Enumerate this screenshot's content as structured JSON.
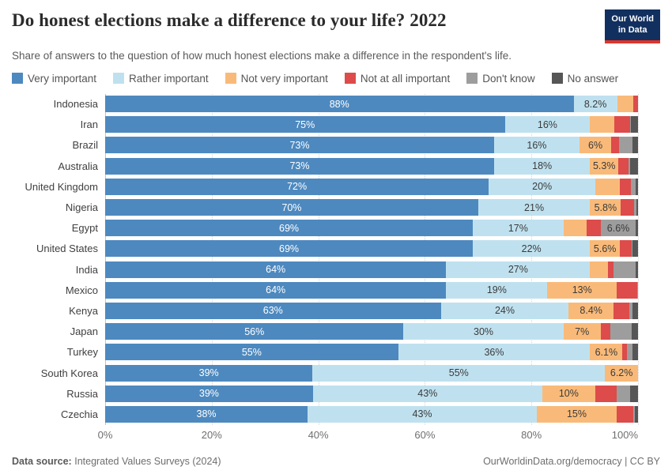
{
  "header": {
    "title": "Do honest elections make a difference to your life? 2022",
    "subtitle": "Share of answers to the question of how much honest elections make a difference in the respondent's life.",
    "logo_line1": "Our World",
    "logo_line2": "in Data",
    "logo_colors": {
      "background": "#12305f",
      "stripe": "#e0352b"
    }
  },
  "chart_data": {
    "type": "bar",
    "orientation": "horizontal-stacked",
    "unit": "%",
    "xlim": [
      0,
      100
    ],
    "grid": true,
    "ticks": [
      "0%",
      "20%",
      "40%",
      "60%",
      "80%",
      "100%"
    ],
    "series_names": [
      "Very important",
      "Rather important",
      "Not very important",
      "Not at all important",
      "Don't know",
      "No answer"
    ],
    "series_colors": [
      "#4d89bf",
      "#bfe1ef",
      "#f9ba79",
      "#dd4b4b",
      "#9d9d9d",
      "#565656"
    ],
    "categories": [
      "Indonesia",
      "Iran",
      "Brazil",
      "Australia",
      "United Kingdom",
      "Nigeria",
      "Egypt",
      "United States",
      "India",
      "Mexico",
      "Kenya",
      "Japan",
      "Turkey",
      "South Korea",
      "Russia",
      "Czechia"
    ],
    "rows": [
      {
        "country": "Indonesia",
        "values": [
          88,
          8.2,
          3.0,
          0.9,
          0,
          0
        ],
        "labels": [
          "88%",
          "8.2%",
          "",
          "",
          "",
          ""
        ]
      },
      {
        "country": "Iran",
        "values": [
          75,
          16,
          4.6,
          2.9,
          0.2,
          1.3
        ],
        "labels": [
          "75%",
          "16%",
          "",
          "",
          "",
          ""
        ]
      },
      {
        "country": "Brazil",
        "values": [
          73,
          16,
          6.0,
          1.5,
          2.4,
          1.1
        ],
        "labels": [
          "73%",
          "16%",
          "6%",
          "",
          "",
          ""
        ]
      },
      {
        "country": "Australia",
        "values": [
          73,
          18,
          5.3,
          1.9,
          0.3,
          1.5
        ],
        "labels": [
          "73%",
          "18%",
          "5.3%",
          "",
          "",
          ""
        ]
      },
      {
        "country": "United Kingdom",
        "values": [
          72,
          20,
          4.6,
          2.0,
          0.9,
          0.5
        ],
        "labels": [
          "72%",
          "20%",
          "",
          "",
          "",
          ""
        ]
      },
      {
        "country": "Nigeria",
        "values": [
          70,
          21,
          5.8,
          2.4,
          0.5,
          0.3
        ],
        "labels": [
          "70%",
          "21%",
          "5.8%",
          "",
          "",
          ""
        ]
      },
      {
        "country": "Egypt",
        "values": [
          69,
          17,
          4.4,
          2.6,
          6.6,
          0.4
        ],
        "labels": [
          "69%",
          "17%",
          "",
          "",
          "6.6%",
          ""
        ]
      },
      {
        "country": "United States",
        "values": [
          69,
          22,
          5.6,
          2.2,
          0.2,
          1.0
        ],
        "labels": [
          "69%",
          "22%",
          "5.6%",
          "",
          "",
          ""
        ]
      },
      {
        "country": "India",
        "values": [
          64,
          27,
          3.3,
          1.1,
          4.1,
          0.5
        ],
        "labels": [
          "64%",
          "27%",
          "",
          "",
          "",
          ""
        ]
      },
      {
        "country": "Mexico",
        "values": [
          64,
          19,
          13.0,
          3.8,
          0.2,
          0
        ],
        "labels": [
          "64%",
          "19%",
          "13%",
          "",
          "",
          ""
        ]
      },
      {
        "country": "Kenya",
        "values": [
          63,
          24,
          8.4,
          3.0,
          0.5,
          1.1
        ],
        "labels": [
          "63%",
          "24%",
          "8.4%",
          "",
          "",
          ""
        ]
      },
      {
        "country": "Japan",
        "values": [
          56,
          30,
          7.0,
          1.8,
          4.0,
          1.2
        ],
        "labels": [
          "56%",
          "30%",
          "7%",
          "",
          "",
          ""
        ]
      },
      {
        "country": "Turkey",
        "values": [
          55,
          36,
          6.1,
          0.8,
          1.1,
          1.0
        ],
        "labels": [
          "55%",
          "36%",
          "6.1%",
          "",
          "",
          ""
        ]
      },
      {
        "country": "South Korea",
        "values": [
          39,
          55,
          6.2,
          0,
          0,
          0
        ],
        "labels": [
          "39%",
          "55%",
          "6.2%",
          "",
          "",
          ""
        ]
      },
      {
        "country": "Russia",
        "values": [
          39,
          43,
          10.0,
          4.0,
          2.5,
          1.5
        ],
        "labels": [
          "39%",
          "43%",
          "10%",
          "",
          "",
          ""
        ]
      },
      {
        "country": "Czechia",
        "values": [
          38,
          43,
          15.0,
          3.1,
          0.3,
          0.6
        ],
        "labels": [
          "38%",
          "43%",
          "15%",
          "",
          "",
          ""
        ]
      }
    ]
  },
  "footer": {
    "source_label": "Data source:",
    "source_value": "Integrated Values Surveys (2024)",
    "attribution": "OurWorldinData.org/democracy | CC BY"
  }
}
